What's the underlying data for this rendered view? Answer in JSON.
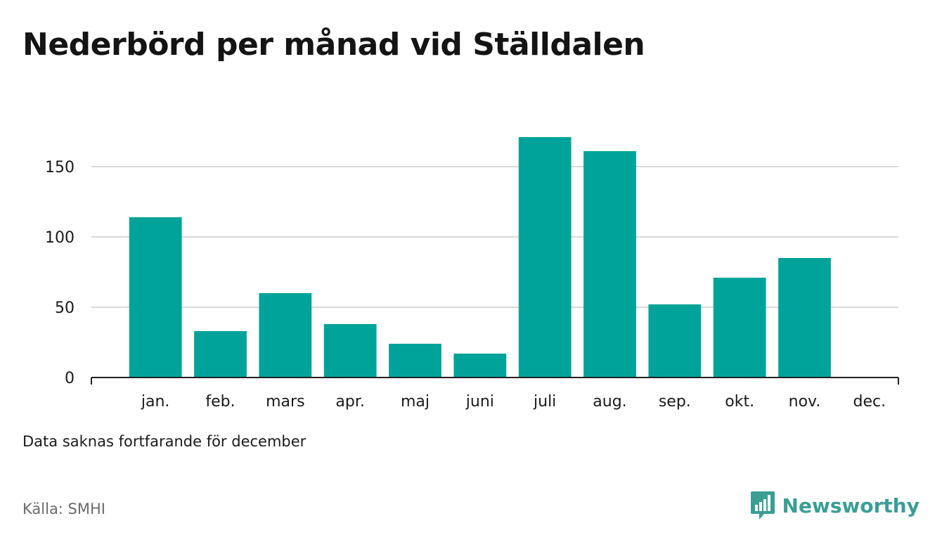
{
  "title": "Nederbörd per månad vid Ställdalen",
  "note": "Data saknas fortfarande för december",
  "source": "Källa: SMHI",
  "brand": {
    "name": "Newsworthy",
    "icon": "bar-chart-speech-bubble-icon",
    "color": "#3a9e95"
  },
  "colors": {
    "bar": "#00a39a",
    "grid": "#d9d9d9",
    "axis": "#222222"
  },
  "chart_data": {
    "type": "bar",
    "title": "Nederbörd per månad vid Ställdalen",
    "xlabel": "",
    "ylabel": "",
    "categories": [
      "jan.",
      "feb.",
      "mars",
      "apr.",
      "maj",
      "juni",
      "juli",
      "aug.",
      "sep.",
      "okt.",
      "nov.",
      "dec."
    ],
    "values": [
      114,
      33,
      60,
      38,
      24,
      17,
      171,
      161,
      52,
      71,
      85,
      null
    ],
    "ylim": [
      0,
      180
    ],
    "yticks": [
      0,
      50,
      100,
      150
    ],
    "grid": true,
    "legend": "none"
  }
}
